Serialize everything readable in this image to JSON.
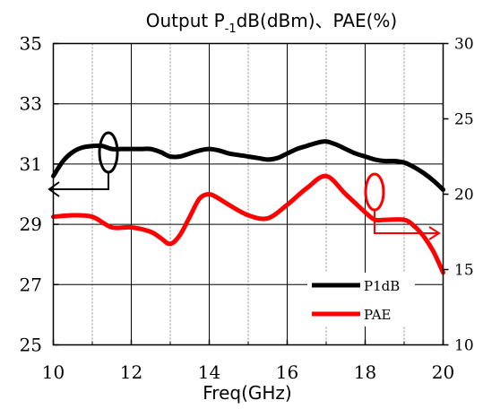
{
  "chart_data": {
    "type": "line",
    "title": "Output P-1dB(dBm)、PAE(%)",
    "title_main": "Output P",
    "title_sub": "-1",
    "title_rest": "dB(dBm)、PAE(%)",
    "xlabel": "Freq(GHz)",
    "xlim": [
      10,
      20
    ],
    "ylim_left": [
      25,
      35
    ],
    "ylim_right": [
      10,
      30
    ],
    "x_ticks": [
      "10",
      "12",
      "14",
      "16",
      "18",
      "20"
    ],
    "y_left_ticks": [
      "25",
      "27",
      "29",
      "31",
      "33",
      "35"
    ],
    "y_right_ticks": [
      "10",
      "15",
      "20",
      "25",
      "30"
    ],
    "grid": true,
    "legend_position": "bottom-right",
    "series": [
      {
        "name": "P1dB",
        "axis": "left",
        "color": "#000000",
        "x": [
          10,
          10.25,
          10.5,
          10.75,
          11,
          11.25,
          11.5,
          11.75,
          12,
          12.25,
          12.5,
          12.75,
          13,
          13.25,
          13.5,
          13.75,
          14,
          14.25,
          14.5,
          14.75,
          15,
          15.25,
          15.5,
          15.75,
          16,
          16.25,
          16.5,
          16.75,
          17,
          17.25,
          17.5,
          17.75,
          18,
          18.25,
          18.5,
          18.75,
          19,
          19.25,
          19.5,
          19.75,
          20
        ],
        "values": [
          30.6,
          31.1,
          31.4,
          31.55,
          31.6,
          31.6,
          31.5,
          31.5,
          31.5,
          31.5,
          31.5,
          31.4,
          31.25,
          31.25,
          31.35,
          31.45,
          31.5,
          31.45,
          31.35,
          31.3,
          31.25,
          31.2,
          31.15,
          31.2,
          31.35,
          31.5,
          31.6,
          31.7,
          31.75,
          31.65,
          31.5,
          31.35,
          31.25,
          31.15,
          31.1,
          31.1,
          31.05,
          30.9,
          30.7,
          30.45,
          30.15
        ]
      },
      {
        "name": "PAE",
        "axis": "right",
        "color": "#ff0000",
        "x": [
          10,
          10.5,
          11,
          11.5,
          12,
          12.5,
          12.75,
          13,
          13.25,
          13.5,
          13.75,
          14,
          14.25,
          14.5,
          15,
          15.5,
          16,
          16.5,
          17,
          17.5,
          18,
          18.25,
          18.5,
          19,
          19.25,
          19.5,
          19.75,
          20
        ],
        "values": [
          18.5,
          18.6,
          18.5,
          17.8,
          17.8,
          17.5,
          17.1,
          16.7,
          17.3,
          18.5,
          19.7,
          20.0,
          19.7,
          19.3,
          18.6,
          18.4,
          19.3,
          20.4,
          21.2,
          20.0,
          18.8,
          18.3,
          18.3,
          18.3,
          17.9,
          17.2,
          16.2,
          14.8
        ]
      }
    ],
    "annotations": [
      "P1dB ellipse at ~11.4 GHz with arrow pointing to left axis",
      "PAE ellipse at ~18.3 GHz with arrow pointing to right axis"
    ]
  }
}
